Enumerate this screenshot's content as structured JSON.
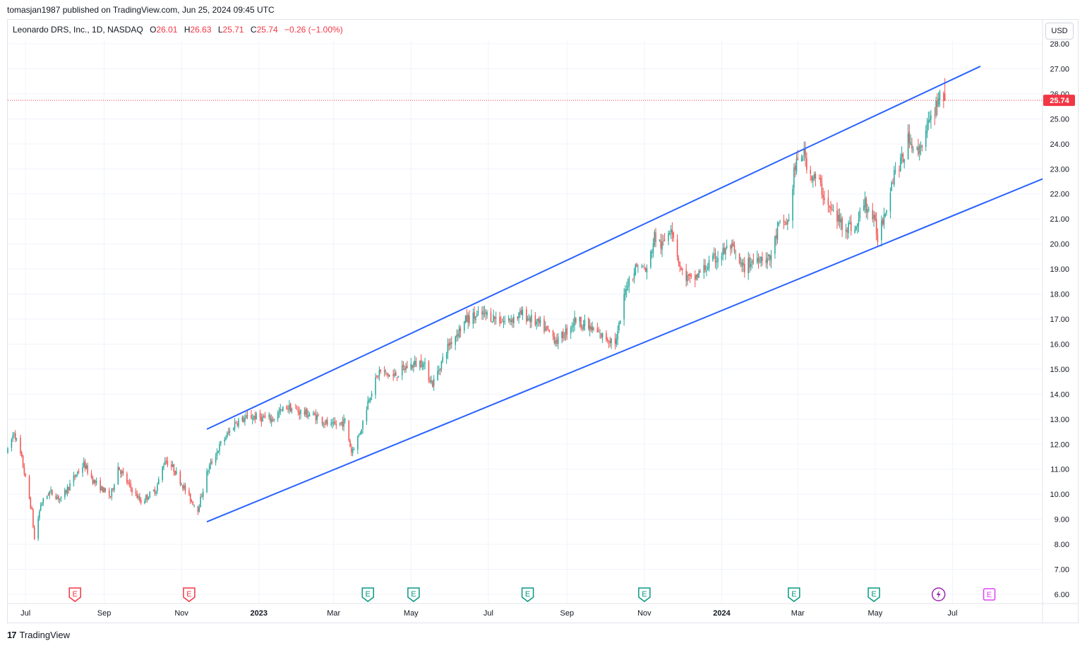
{
  "header": {
    "published": "tomasjan1987 published on TradingView.com, Jun 25, 2024 09:45 UTC"
  },
  "legend": {
    "symbol": "Leonardo DRS, Inc., 1D, NASDAQ",
    "o_label": "O",
    "o_value": "26.01",
    "h_label": "H",
    "h_value": "26.63",
    "l_label": "L",
    "l_value": "25.71",
    "c_label": "C",
    "c_value": "25.74",
    "change": "−0.26 (−1.00%)"
  },
  "currency_button": "USD",
  "footer": {
    "brand": "TradingView",
    "logo_glyph": "17"
  },
  "colors": {
    "up": "#26a69a",
    "down": "#ef5350",
    "channel": "#2962ff",
    "price_label": "#f23645",
    "earnings_red": "#f23645",
    "earnings_green": "#089981",
    "dividend": "#9c27b0",
    "future_earnings": "#e040fb"
  },
  "chart_data": {
    "type": "candlestick",
    "ylim": [
      6,
      28
    ],
    "y_ticks": [
      "6.00",
      "7.00",
      "8.00",
      "9.00",
      "10.00",
      "11.00",
      "12.00",
      "13.00",
      "14.00",
      "15.00",
      "16.00",
      "17.00",
      "18.00",
      "19.00",
      "20.00",
      "21.00",
      "22.00",
      "23.00",
      "24.00",
      "25.00",
      "26.00",
      "27.00",
      "28.00"
    ],
    "x_ticks": [
      {
        "label": "Jul",
        "date": "2022-07-01",
        "bold": false
      },
      {
        "label": "Sep",
        "date": "2022-09-01",
        "bold": false
      },
      {
        "label": "Nov",
        "date": "2022-11-01",
        "bold": false
      },
      {
        "label": "2023",
        "date": "2023-01-01",
        "bold": true
      },
      {
        "label": "Mar",
        "date": "2023-03-01",
        "bold": false
      },
      {
        "label": "May",
        "date": "2023-05-01",
        "bold": false
      },
      {
        "label": "Jul",
        "date": "2023-07-01",
        "bold": false
      },
      {
        "label": "Sep",
        "date": "2023-09-01",
        "bold": false
      },
      {
        "label": "Nov",
        "date": "2023-11-01",
        "bold": false
      },
      {
        "label": "2024",
        "date": "2024-01-01",
        "bold": true
      },
      {
        "label": "Mar",
        "date": "2024-03-01",
        "bold": false
      },
      {
        "label": "May",
        "date": "2024-05-01",
        "bold": false
      },
      {
        "label": "Jul",
        "date": "2024-07-01",
        "bold": false
      }
    ],
    "x_range": [
      "2022-06-17",
      "2024-09-10"
    ],
    "last_price": 25.74,
    "last_price_label": "25.74",
    "price_path": [
      [
        "2022-06-17",
        11.7
      ],
      [
        "2022-06-22",
        12.5
      ],
      [
        "2022-06-28",
        11.4
      ],
      [
        "2022-07-06",
        9.3
      ],
      [
        "2022-07-08",
        8.2
      ],
      [
        "2022-07-13",
        9.6
      ],
      [
        "2022-07-20",
        10.1
      ],
      [
        "2022-07-29",
        9.8
      ],
      [
        "2022-08-10",
        10.8
      ],
      [
        "2022-08-16",
        11.2
      ],
      [
        "2022-08-24",
        10.5
      ],
      [
        "2022-09-06",
        9.9
      ],
      [
        "2022-09-12",
        11.1
      ],
      [
        "2022-09-20",
        10.4
      ],
      [
        "2022-09-30",
        9.7
      ],
      [
        "2022-10-12",
        10.2
      ],
      [
        "2022-10-19",
        11.4
      ],
      [
        "2022-10-26",
        11.0
      ],
      [
        "2022-11-08",
        9.8
      ],
      [
        "2022-11-14",
        9.4
      ],
      [
        "2022-11-22",
        11.0
      ],
      [
        "2022-12-02",
        12.0
      ],
      [
        "2022-12-14",
        12.9
      ],
      [
        "2022-12-27",
        13.1
      ],
      [
        "2023-01-11",
        13.0
      ],
      [
        "2023-01-23",
        13.5
      ],
      [
        "2023-02-02",
        13.3
      ],
      [
        "2023-02-16",
        13.1
      ],
      [
        "2023-02-27",
        12.7
      ],
      [
        "2023-03-10",
        12.9
      ],
      [
        "2023-03-15",
        11.7
      ],
      [
        "2023-03-22",
        12.5
      ],
      [
        "2023-03-29",
        13.9
      ],
      [
        "2023-04-06",
        14.9
      ],
      [
        "2023-04-17",
        14.7
      ],
      [
        "2023-04-28",
        15.1
      ],
      [
        "2023-05-10",
        15.3
      ],
      [
        "2023-05-18",
        14.4
      ],
      [
        "2023-05-31",
        16.0
      ],
      [
        "2023-06-14",
        17.0
      ],
      [
        "2023-06-28",
        17.2
      ],
      [
        "2023-07-14",
        16.9
      ],
      [
        "2023-07-28",
        17.2
      ],
      [
        "2023-08-15",
        16.6
      ],
      [
        "2023-08-25",
        16.1
      ],
      [
        "2023-09-08",
        17.0
      ],
      [
        "2023-09-20",
        16.6
      ],
      [
        "2023-09-29",
        16.3
      ],
      [
        "2023-10-10",
        16.1
      ],
      [
        "2023-10-18",
        18.4
      ],
      [
        "2023-10-27",
        19.2
      ],
      [
        "2023-11-03",
        18.9
      ],
      [
        "2023-11-09",
        20.3
      ],
      [
        "2023-11-15",
        19.9
      ],
      [
        "2023-11-22",
        20.8
      ],
      [
        "2023-11-30",
        18.9
      ],
      [
        "2023-12-08",
        18.5
      ],
      [
        "2023-12-18",
        19.0
      ],
      [
        "2023-12-29",
        19.5
      ],
      [
        "2024-01-08",
        19.9
      ],
      [
        "2024-01-17",
        19.0
      ],
      [
        "2024-01-30",
        19.5
      ],
      [
        "2024-02-08",
        19.4
      ],
      [
        "2024-02-15",
        20.7
      ],
      [
        "2024-02-23",
        20.9
      ],
      [
        "2024-02-27",
        22.9
      ],
      [
        "2024-03-05",
        23.7
      ],
      [
        "2024-03-11",
        22.8
      ],
      [
        "2024-03-18",
        22.4
      ],
      [
        "2024-03-26",
        21.4
      ],
      [
        "2024-04-05",
        20.8
      ],
      [
        "2024-04-16",
        20.6
      ],
      [
        "2024-04-22",
        21.7
      ],
      [
        "2024-04-29",
        21.1
      ],
      [
        "2024-05-03",
        20.3
      ],
      [
        "2024-05-09",
        21.4
      ],
      [
        "2024-05-16",
        22.9
      ],
      [
        "2024-05-22",
        23.3
      ],
      [
        "2024-05-28",
        24.3
      ],
      [
        "2024-06-03",
        23.6
      ],
      [
        "2024-06-10",
        24.5
      ],
      [
        "2024-06-14",
        24.9
      ],
      [
        "2024-06-18",
        25.6
      ],
      [
        "2024-06-21",
        26.0
      ],
      [
        "2024-06-25",
        25.74
      ]
    ],
    "channel_lines": [
      {
        "from": [
          "2022-11-21",
          12.6
        ],
        "to": [
          "2024-07-23",
          27.1
        ]
      },
      {
        "from": [
          "2022-11-21",
          8.9
        ],
        "to": [
          "2024-09-10",
          22.6
        ]
      }
    ],
    "events": [
      {
        "type": "earnings",
        "date": "2022-08-09",
        "color": "red",
        "glyph": "E"
      },
      {
        "type": "earnings",
        "date": "2022-11-07",
        "color": "red",
        "glyph": "E"
      },
      {
        "type": "earnings",
        "date": "2023-03-28",
        "color": "green",
        "glyph": "E"
      },
      {
        "type": "earnings",
        "date": "2023-05-03",
        "color": "green",
        "glyph": "E"
      },
      {
        "type": "earnings",
        "date": "2023-08-01",
        "color": "green",
        "glyph": "E"
      },
      {
        "type": "earnings",
        "date": "2023-11-01",
        "color": "green",
        "glyph": "E"
      },
      {
        "type": "earnings",
        "date": "2024-02-27",
        "color": "green",
        "glyph": "E"
      },
      {
        "type": "earnings",
        "date": "2024-04-30",
        "color": "green",
        "glyph": "E"
      },
      {
        "type": "dividend",
        "date": "2024-06-20",
        "color": "purple",
        "icon": "lightning-icon"
      },
      {
        "type": "earnings",
        "date": "2024-07-30",
        "color": "magenta",
        "glyph": "E"
      }
    ]
  }
}
